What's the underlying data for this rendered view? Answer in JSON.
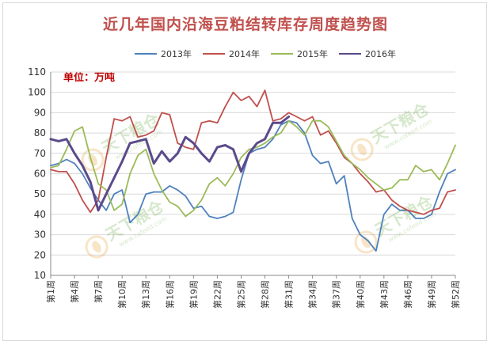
{
  "chart_data": {
    "type": "line",
    "title": "近几年国内沿海豆粕结转库存周度趋势图",
    "unit_label": "单位：万吨",
    "ylim": [
      10,
      110
    ],
    "yticks": [
      10,
      20,
      30,
      40,
      50,
      60,
      70,
      80,
      90,
      100,
      110
    ],
    "xlim": [
      1,
      52
    ],
    "xticks": [
      1,
      4,
      7,
      10,
      13,
      16,
      19,
      22,
      25,
      28,
      31,
      34,
      37,
      40,
      43,
      46,
      49,
      52
    ],
    "xtick_labels": [
      "第1周",
      "第4周",
      "第7周",
      "第10周",
      "第13周",
      "第16周",
      "第19周",
      "第22周",
      "第25周",
      "第28周",
      "第31周",
      "第34周",
      "第37周",
      "第40周",
      "第43周",
      "第46周",
      "第49周",
      "第52周"
    ],
    "grid": true,
    "legend_position": "top",
    "series": [
      {
        "name": "2013年",
        "color": "#4f81bd",
        "x": [
          1,
          2,
          3,
          4,
          5,
          6,
          7,
          8,
          9,
          10,
          11,
          12,
          13,
          14,
          15,
          16,
          17,
          18,
          19,
          20,
          21,
          22,
          23,
          24,
          25,
          26,
          27,
          28,
          29,
          30,
          31,
          32,
          33,
          34,
          35,
          36,
          37,
          38,
          39,
          40,
          41,
          42,
          43,
          44,
          45,
          46,
          47,
          48,
          49,
          50,
          51,
          52
        ],
        "values": [
          64,
          65,
          67,
          65,
          60,
          53,
          47,
          42,
          50,
          52,
          36,
          40,
          50,
          51,
          51,
          54,
          52,
          49,
          43,
          44,
          39,
          38,
          39,
          41,
          57,
          70,
          72,
          73,
          77,
          84,
          86,
          85,
          80,
          69,
          65,
          66,
          55,
          59,
          38,
          30,
          27,
          22,
          40,
          45,
          42,
          42,
          38,
          38,
          40,
          51,
          60,
          62
        ]
      },
      {
        "name": "2014年",
        "color": "#c0504d",
        "x": [
          1,
          2,
          3,
          4,
          5,
          6,
          7,
          8,
          9,
          10,
          11,
          12,
          13,
          14,
          15,
          16,
          17,
          18,
          19,
          20,
          21,
          22,
          23,
          24,
          25,
          26,
          27,
          28,
          29,
          30,
          31,
          32,
          33,
          34,
          35,
          36,
          37,
          38,
          39,
          40,
          41,
          42,
          43,
          44,
          45,
          46,
          47,
          48,
          49,
          50,
          51,
          52
        ],
        "values": [
          62,
          61,
          61,
          55,
          47,
          41,
          47,
          68,
          87,
          86,
          88,
          78,
          79,
          81,
          90,
          89,
          75,
          73,
          72,
          85,
          86,
          85,
          93,
          100,
          96,
          98,
          93,
          101,
          86,
          87,
          90,
          88,
          86,
          88,
          79,
          81,
          75,
          68,
          65,
          60,
          56,
          51,
          52,
          47,
          44,
          42,
          41,
          40,
          42,
          43,
          51,
          52
        ]
      },
      {
        "name": "2015年",
        "color": "#9bbb59",
        "x": [
          1,
          2,
          3,
          4,
          5,
          6,
          7,
          8,
          9,
          10,
          11,
          12,
          13,
          14,
          15,
          16,
          17,
          18,
          19,
          20,
          21,
          22,
          23,
          24,
          25,
          26,
          27,
          28,
          29,
          30,
          31,
          32,
          33,
          34,
          35,
          36,
          37,
          38,
          39,
          40,
          41,
          42,
          43,
          44,
          45,
          46,
          47,
          48,
          49,
          50,
          51,
          52
        ],
        "values": [
          63,
          64,
          72,
          81,
          83,
          68,
          55,
          52,
          42,
          45,
          60,
          69,
          72,
          60,
          52,
          46,
          44,
          39,
          42,
          47,
          55,
          58,
          54,
          60,
          68,
          72,
          73,
          75,
          78,
          80,
          86,
          83,
          79,
          86,
          86,
          83,
          76,
          69,
          65,
          62,
          58,
          55,
          52,
          53,
          57,
          57,
          64,
          61,
          62,
          57,
          65,
          74
        ]
      },
      {
        "name": "2016年",
        "color": "#5b4a8b",
        "x": [
          1,
          2,
          3,
          4,
          5,
          6,
          7,
          8,
          9,
          10,
          11,
          12,
          13,
          14,
          15,
          16,
          17,
          18,
          19,
          20,
          21,
          22,
          23,
          24,
          25,
          26,
          27,
          28,
          29,
          30,
          31
        ],
        "values": [
          77,
          76,
          77,
          70,
          64,
          56,
          42,
          50,
          58,
          66,
          75,
          76,
          77,
          65,
          71,
          66,
          70,
          78,
          75,
          70,
          66,
          73,
          74,
          72,
          61,
          70,
          75,
          77,
          85,
          85,
          88
        ]
      }
    ]
  },
  "watermark": {
    "brand": "天下粮仓",
    "url": "www.cofeed.com"
  }
}
